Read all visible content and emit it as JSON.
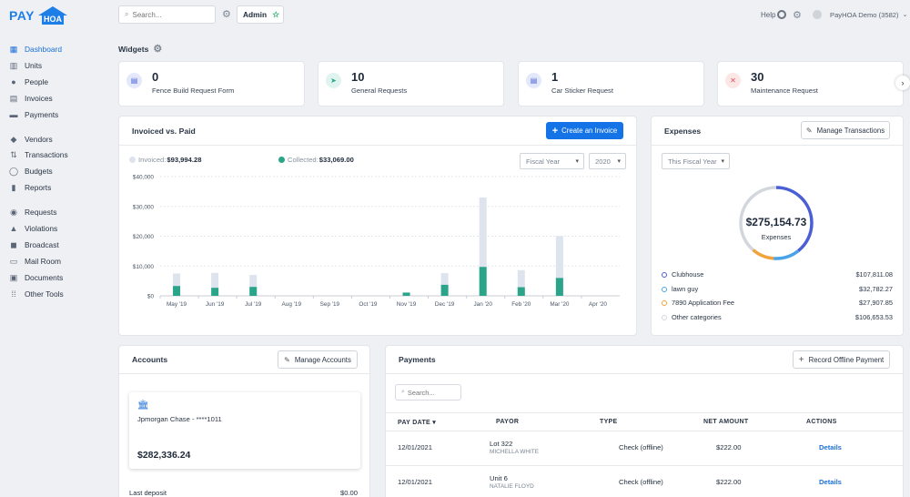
{
  "brand": {
    "pay": "PAY",
    "hoa": "HOA"
  },
  "sidebar": {
    "items": [
      {
        "label": "Dashboard",
        "icon": "dashboard-icon",
        "glyph": "▦",
        "active": true
      },
      {
        "label": "Units",
        "icon": "units-icon",
        "glyph": "▥"
      },
      {
        "label": "People",
        "icon": "people-icon",
        "glyph": "●"
      },
      {
        "label": "Invoices",
        "icon": "invoices-icon",
        "glyph": "▤"
      },
      {
        "label": "Payments",
        "icon": "payments-icon",
        "glyph": "▬"
      },
      {
        "label": "Vendors",
        "icon": "vendors-icon",
        "glyph": "◆"
      },
      {
        "label": "Transactions",
        "icon": "transactions-icon",
        "glyph": "⇅"
      },
      {
        "label": "Budgets",
        "icon": "budgets-icon",
        "glyph": "◯"
      },
      {
        "label": "Reports",
        "icon": "reports-icon",
        "glyph": "▮"
      },
      {
        "label": "Requests",
        "icon": "requests-icon",
        "glyph": "◉"
      },
      {
        "label": "Violations",
        "icon": "violations-icon",
        "glyph": "▲"
      },
      {
        "label": "Broadcast",
        "icon": "broadcast-icon",
        "glyph": "◼"
      },
      {
        "label": "Mail Room",
        "icon": "mail-room-icon",
        "glyph": "▭"
      },
      {
        "label": "Documents",
        "icon": "documents-icon",
        "glyph": "▣"
      },
      {
        "label": "Other Tools",
        "icon": "other-tools-icon",
        "glyph": "⁞⁞"
      }
    ]
  },
  "topbar": {
    "search_placeholder": "Search...",
    "admin_label": "Admin",
    "help_label": "Help",
    "user_label": "PayHOA Demo (3582)"
  },
  "widgets": {
    "title": "Widgets",
    "items": [
      {
        "count": "0",
        "label": "Fence Build Request Form",
        "icon": "form-icon",
        "bg": "#e4e8fb",
        "fg": "#4a63d8"
      },
      {
        "count": "10",
        "label": "General Requests",
        "icon": "paper-plane-icon",
        "bg": "#dff4ef",
        "fg": "#2aa58a"
      },
      {
        "count": "1",
        "label": "Car Sticker Request",
        "icon": "form-icon",
        "bg": "#e4e8fb",
        "fg": "#4a63d8"
      },
      {
        "count": "30",
        "label": "Maintenance Request",
        "icon": "tools-icon",
        "bg": "#fde6e6",
        "fg": "#e05252"
      }
    ]
  },
  "invoiced": {
    "title": "Invoiced vs. Paid",
    "create_button": "Create an Invoice",
    "legend_invoiced_label": "Invoiced:",
    "legend_invoiced_value": "$93,994.28",
    "legend_collected_label": "Collected:",
    "legend_collected_value": "$33,069.00",
    "period_select": "Fiscal Year",
    "year_select": "2020"
  },
  "chart_data": {
    "type": "bar",
    "categories": [
      "May '19",
      "Jun '19",
      "Jul '19",
      "Aug '19",
      "Sep '19",
      "Oct '19",
      "Nov '19",
      "Dec '19",
      "Jan '20",
      "Feb '20",
      "Mar '20",
      "Apr '20"
    ],
    "series": [
      {
        "name": "Invoiced",
        "color": "#dde4ee",
        "values": [
          7500,
          7700,
          7000,
          0,
          0,
          0,
          600,
          7600,
          33000,
          8600,
          20000,
          0
        ]
      },
      {
        "name": "Collected",
        "color": "#2aa58a",
        "values": [
          3300,
          2700,
          3000,
          0,
          0,
          0,
          1100,
          3700,
          9700,
          2900,
          6000,
          0
        ]
      }
    ],
    "yticks": [
      "$40,000",
      "$30,000",
      "$20,000",
      "$10,000",
      "$0"
    ],
    "ylim": [
      0,
      40000
    ],
    "grid": true
  },
  "expenses": {
    "title": "Expenses",
    "manage_button": "Manage Transactions",
    "period_select": "This Fiscal Year",
    "total": "$275,154.73",
    "total_label": "Expenses",
    "rows": [
      {
        "label": "Clubhouse",
        "amount": "$107,811.08",
        "color": "#4a5ed6",
        "fraction": 0.392
      },
      {
        "label": "lawn guy",
        "amount": "$32,782.27",
        "color": "#4aa3e8",
        "fraction": 0.119
      },
      {
        "label": "7890 Application Fee",
        "amount": "$27,907.85",
        "color": "#f0a33a",
        "fraction": 0.101
      },
      {
        "label": "Other categories",
        "amount": "$106,653.53",
        "color": "#d3d7dd",
        "fraction": 0.388
      }
    ]
  },
  "accounts": {
    "title": "Accounts",
    "manage_button": "Manage Accounts",
    "bank_name": "Jpmorgan Chase - ****1011",
    "balance": "$282,336.24",
    "last_deposit_label": "Last deposit",
    "last_deposit_value": "$0.00"
  },
  "payments": {
    "title": "Payments",
    "record_button": "Record Offline Payment",
    "search_placeholder": "Search...",
    "columns": [
      "PAY DATE",
      "PAYOR",
      "TYPE",
      "NET AMOUNT",
      "ACTIONS"
    ],
    "rows": [
      {
        "date": "12/01/2021",
        "lot": "Lot 322",
        "name": "MICHELLA WHITE",
        "type": "Check (offline)",
        "amount": "$222.00",
        "action": "Details"
      },
      {
        "date": "12/01/2021",
        "lot": "Unit 6",
        "name": "NATALIE FLOYD",
        "type": "Check (offline)",
        "amount": "$222.00",
        "action": "Details"
      }
    ]
  }
}
